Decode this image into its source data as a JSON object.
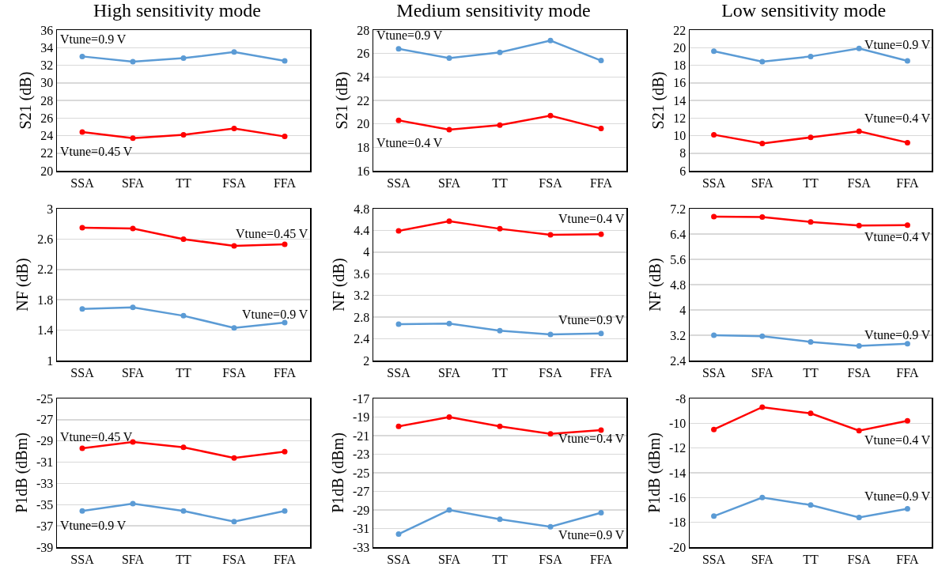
{
  "chart_data": [
    {
      "type": "line",
      "title": "High sensitivity mode",
      "ylabel": "S21 (dB)",
      "categories": [
        "SSA",
        "SFA",
        "TT",
        "FSA",
        "FFA"
      ],
      "ylim": [
        20,
        36
      ],
      "yticks": [
        20,
        22,
        24,
        26,
        28,
        30,
        32,
        34,
        36
      ],
      "grid": "y",
      "marker": "circle",
      "line_style": "solid",
      "legend": false,
      "series": [
        {
          "name": "Vtune=0.9 V",
          "color": "#5b9bd5",
          "values": [
            33.0,
            32.4,
            32.8,
            33.5,
            32.5
          ]
        },
        {
          "name": "Vtune=0.45 V",
          "color": "#ff0000",
          "values": [
            24.4,
            23.7,
            24.1,
            24.8,
            23.9
          ]
        }
      ]
    },
    {
      "type": "line",
      "title": "Medium sensitivity mode",
      "ylabel": "S21 (dB)",
      "categories": [
        "SSA",
        "SFA",
        "TT",
        "FSA",
        "FFA"
      ],
      "ylim": [
        16,
        28
      ],
      "yticks": [
        16,
        18,
        20,
        22,
        24,
        26,
        28
      ],
      "grid": "y",
      "marker": "circle",
      "line_style": "solid",
      "legend": false,
      "series": [
        {
          "name": "Vtune=0.9 V",
          "color": "#5b9bd5",
          "values": [
            26.4,
            25.6,
            26.1,
            27.1,
            25.4
          ]
        },
        {
          "name": "Vtune=0.4 V",
          "color": "#ff0000",
          "values": [
            20.3,
            19.5,
            19.9,
            20.7,
            19.6
          ]
        }
      ]
    },
    {
      "type": "line",
      "title": "Low sensitivity mode",
      "ylabel": "S21 (dB)",
      "categories": [
        "SSA",
        "SFA",
        "TT",
        "FSA",
        "FFA"
      ],
      "ylim": [
        6,
        22
      ],
      "yticks": [
        6,
        8,
        10,
        12,
        14,
        16,
        18,
        20,
        22
      ],
      "grid": "y",
      "marker": "circle",
      "line_style": "solid",
      "legend": false,
      "series": [
        {
          "name": "Vtune=0.9 V",
          "color": "#5b9bd5",
          "values": [
            19.6,
            18.4,
            19.0,
            19.9,
            18.5
          ]
        },
        {
          "name": "Vtune=0.4 V",
          "color": "#ff0000",
          "values": [
            10.1,
            9.1,
            9.8,
            10.5,
            9.2
          ]
        }
      ]
    },
    {
      "type": "line",
      "ylabel": "NF (dB)",
      "categories": [
        "SSA",
        "SFA",
        "TT",
        "FSA",
        "FFA"
      ],
      "ylim": [
        1,
        3
      ],
      "yticks": [
        1,
        1.4,
        1.8,
        2.2,
        2.6,
        3
      ],
      "grid": "y",
      "marker": "circle",
      "line_style": "solid",
      "legend": false,
      "series": [
        {
          "name": "Vtune=0.45 V",
          "color": "#ff0000",
          "values": [
            2.75,
            2.74,
            2.6,
            2.51,
            2.53
          ]
        },
        {
          "name": "Vtune=0.9 V",
          "color": "#5b9bd5",
          "values": [
            1.68,
            1.7,
            1.59,
            1.43,
            1.5
          ]
        }
      ]
    },
    {
      "type": "line",
      "ylabel": "NF (dB)",
      "categories": [
        "SSA",
        "SFA",
        "TT",
        "FSA",
        "FFA"
      ],
      "ylim": [
        2,
        4.8
      ],
      "yticks": [
        2,
        2.4,
        2.8,
        3.2,
        3.6,
        4,
        4.4,
        4.8
      ],
      "grid": "y",
      "marker": "circle",
      "line_style": "solid",
      "legend": false,
      "series": [
        {
          "name": "Vtune=0.4 V",
          "color": "#ff0000",
          "values": [
            4.39,
            4.57,
            4.43,
            4.32,
            4.33
          ]
        },
        {
          "name": "Vtune=0.9 V",
          "color": "#5b9bd5",
          "values": [
            2.67,
            2.68,
            2.55,
            2.48,
            2.5
          ]
        }
      ]
    },
    {
      "type": "line",
      "ylabel": "NF (dB)",
      "categories": [
        "SSA",
        "SFA",
        "TT",
        "FSA",
        "FFA"
      ],
      "ylim": [
        2.4,
        7.2
      ],
      "yticks": [
        2.4,
        3.2,
        4,
        4.8,
        5.6,
        6.4,
        7.2
      ],
      "grid": "y",
      "marker": "circle",
      "line_style": "solid",
      "legend": false,
      "series": [
        {
          "name": "Vtune=0.4 V",
          "color": "#ff0000",
          "values": [
            6.95,
            6.94,
            6.78,
            6.67,
            6.68
          ]
        },
        {
          "name": "Vtune=0.9 V",
          "color": "#5b9bd5",
          "values": [
            3.2,
            3.17,
            2.99,
            2.86,
            2.93
          ]
        }
      ]
    },
    {
      "type": "line",
      "ylabel": "P1dB (dBm)",
      "categories": [
        "SSA",
        "SFA",
        "TT",
        "FSA",
        "FFA"
      ],
      "ylim": [
        -39,
        -25
      ],
      "yticks": [
        -39,
        -37,
        -35,
        -33,
        -31,
        -29,
        -27,
        -25
      ],
      "grid": "y",
      "marker": "circle",
      "line_style": "solid",
      "legend": false,
      "series": [
        {
          "name": "Vtune=0.45 V",
          "color": "#ff0000",
          "values": [
            -29.7,
            -29.1,
            -29.6,
            -30.6,
            -30.0
          ]
        },
        {
          "name": "Vtune=0.9 V",
          "color": "#5b9bd5",
          "values": [
            -35.6,
            -34.9,
            -35.6,
            -36.6,
            -35.6
          ]
        }
      ]
    },
    {
      "type": "line",
      "ylabel": "P1dB (dBm)",
      "categories": [
        "SSA",
        "SFA",
        "TT",
        "FSA",
        "FFA"
      ],
      "ylim": [
        -33,
        -17
      ],
      "yticks": [
        -33,
        -31,
        -29,
        -27,
        -25,
        -23,
        -21,
        -19,
        -17
      ],
      "grid": "y",
      "marker": "circle",
      "line_style": "solid",
      "legend": false,
      "series": [
        {
          "name": "Vtune=0.4 V",
          "color": "#ff0000",
          "values": [
            -20.0,
            -19.0,
            -20.0,
            -20.8,
            -20.4
          ]
        },
        {
          "name": "Vtune=0.9 V",
          "color": "#5b9bd5",
          "values": [
            -31.6,
            -29.0,
            -30.0,
            -30.8,
            -29.3
          ]
        }
      ]
    },
    {
      "type": "line",
      "ylabel": "P1dB (dBm)",
      "categories": [
        "SSA",
        "SFA",
        "TT",
        "FSA",
        "FFA"
      ],
      "ylim": [
        -20,
        -8
      ],
      "yticks": [
        -20,
        -18,
        -16,
        -14,
        -12,
        -10,
        -8
      ],
      "grid": "y",
      "marker": "circle",
      "line_style": "solid",
      "legend": false,
      "series": [
        {
          "name": "Vtune=0.4 V",
          "color": "#ff0000",
          "values": [
            -10.5,
            -8.7,
            -9.2,
            -10.6,
            -9.8
          ]
        },
        {
          "name": "Vtune=0.9 V",
          "color": "#5b9bd5",
          "values": [
            -17.5,
            -16.0,
            -16.6,
            -17.6,
            -16.9
          ]
        }
      ]
    }
  ]
}
